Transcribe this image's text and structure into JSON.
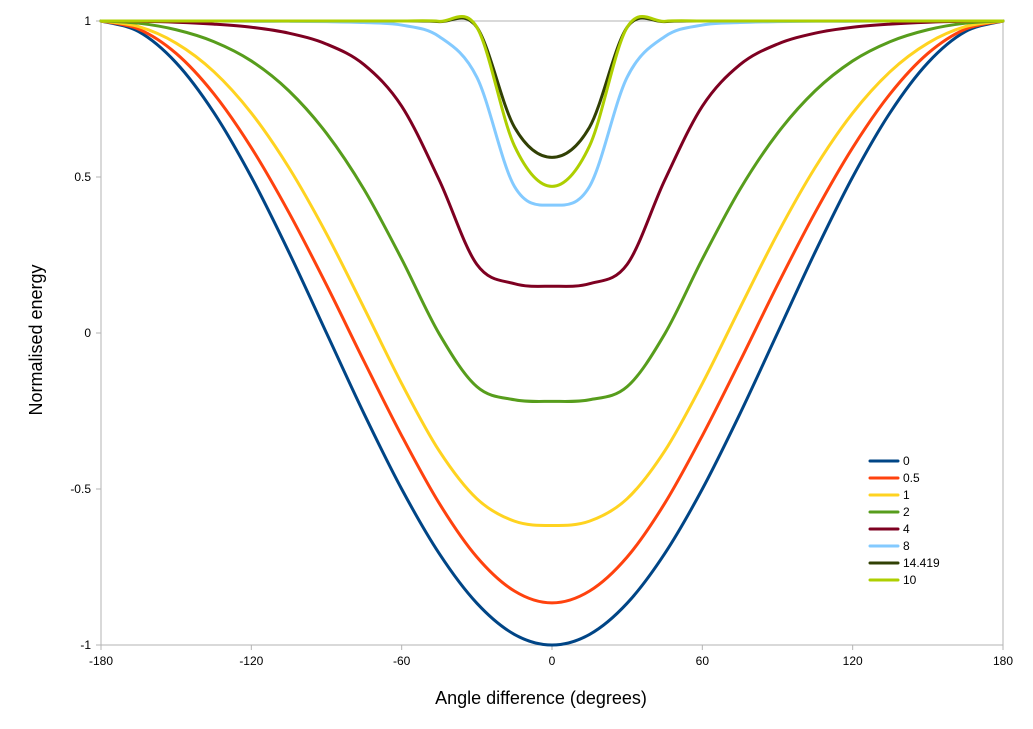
{
  "chart_data": {
    "type": "line",
    "title": "",
    "xlabel": "Angle difference (degrees)",
    "ylabel": "Normalised energy",
    "xlim": [
      -180,
      180
    ],
    "ylim": [
      -1,
      1
    ],
    "xticks": [
      -180,
      -120,
      -60,
      0,
      60,
      120,
      180
    ],
    "yticks": [
      1,
      0.5,
      0,
      -0.5,
      -1
    ],
    "xtick_labels": [
      "-180",
      "-120",
      "-60",
      "0",
      "60",
      "120",
      "180"
    ],
    "ytick_labels": [
      "1",
      "0.5",
      "0",
      "-0.5",
      "-1"
    ],
    "grid": false,
    "legend_position": "bottom-right",
    "x": [
      -180,
      -165,
      -150,
      -135,
      -120,
      -105,
      -90,
      -75,
      -60,
      -45,
      -30,
      -15,
      0,
      15,
      30,
      45,
      60,
      75,
      90,
      105,
      120,
      135,
      150,
      165,
      180
    ],
    "series": [
      {
        "name": "0",
        "color": "#004586",
        "values": [
          1,
          0.966,
          0.866,
          0.707,
          0.5,
          0.259,
          0,
          -0.259,
          -0.5,
          -0.707,
          -0.866,
          -0.966,
          -1,
          -0.966,
          -0.866,
          -0.707,
          -0.5,
          -0.259,
          0,
          0.259,
          0.5,
          0.707,
          0.866,
          0.966,
          1
        ]
      },
      {
        "name": "0.5",
        "color": "#ff420e",
        "values": [
          1,
          0.974,
          0.896,
          0.767,
          0.594,
          0.386,
          0.154,
          -0.091,
          -0.329,
          -0.546,
          -0.718,
          -0.827,
          -0.865,
          -0.827,
          -0.718,
          -0.546,
          -0.329,
          -0.091,
          0.154,
          0.386,
          0.594,
          0.767,
          0.896,
          0.974,
          1
        ]
      },
      {
        "name": "1",
        "color": "#ffd320",
        "values": [
          1,
          0.982,
          0.929,
          0.838,
          0.705,
          0.53,
          0.318,
          0.08,
          -0.162,
          -0.378,
          -0.531,
          -0.603,
          -0.617,
          -0.603,
          -0.531,
          -0.378,
          -0.162,
          0.08,
          0.318,
          0.53,
          0.705,
          0.838,
          0.929,
          0.982,
          1
        ]
      },
      {
        "name": "2",
        "color": "#579d1c",
        "values": [
          1,
          0.993,
          0.972,
          0.934,
          0.872,
          0.776,
          0.64,
          0.46,
          0.237,
          -0.003,
          -0.172,
          -0.214,
          -0.219,
          -0.214,
          -0.172,
          -0.003,
          0.237,
          0.46,
          0.64,
          0.776,
          0.872,
          0.934,
          0.972,
          0.993,
          1
        ]
      },
      {
        "name": "4",
        "color": "#7e0021",
        "values": [
          1,
          0.999,
          0.996,
          0.99,
          0.98,
          0.961,
          0.926,
          0.86,
          0.727,
          0.49,
          0.22,
          0.158,
          0.15,
          0.158,
          0.22,
          0.49,
          0.727,
          0.86,
          0.926,
          0.961,
          0.98,
          0.99,
          0.996,
          0.999,
          1
        ]
      },
      {
        "name": "8",
        "color": "#83caff",
        "values": [
          1,
          1,
          1,
          1,
          0.999,
          0.999,
          0.998,
          0.995,
          0.987,
          0.95,
          0.82,
          0.47,
          0.41,
          0.47,
          0.82,
          0.95,
          0.987,
          0.995,
          0.998,
          0.999,
          0.999,
          1,
          1,
          1,
          1
        ]
      },
      {
        "name": "14.419",
        "color": "#314004",
        "values": [
          1,
          1,
          1,
          1,
          1,
          1,
          1,
          1,
          1,
          0.998,
          0.98,
          0.66,
          0.563,
          0.66,
          0.98,
          0.998,
          1,
          1,
          1,
          1,
          1,
          1,
          1,
          1,
          1
        ]
      },
      {
        "name": "10",
        "color": "#aecf00",
        "values": [
          1,
          1,
          1,
          1,
          1,
          1,
          1,
          1,
          1,
          0.999,
          0.98,
          0.6,
          0.47,
          0.6,
          0.98,
          0.999,
          1,
          1,
          1,
          1,
          1,
          1,
          1,
          1,
          1
        ]
      }
    ]
  }
}
